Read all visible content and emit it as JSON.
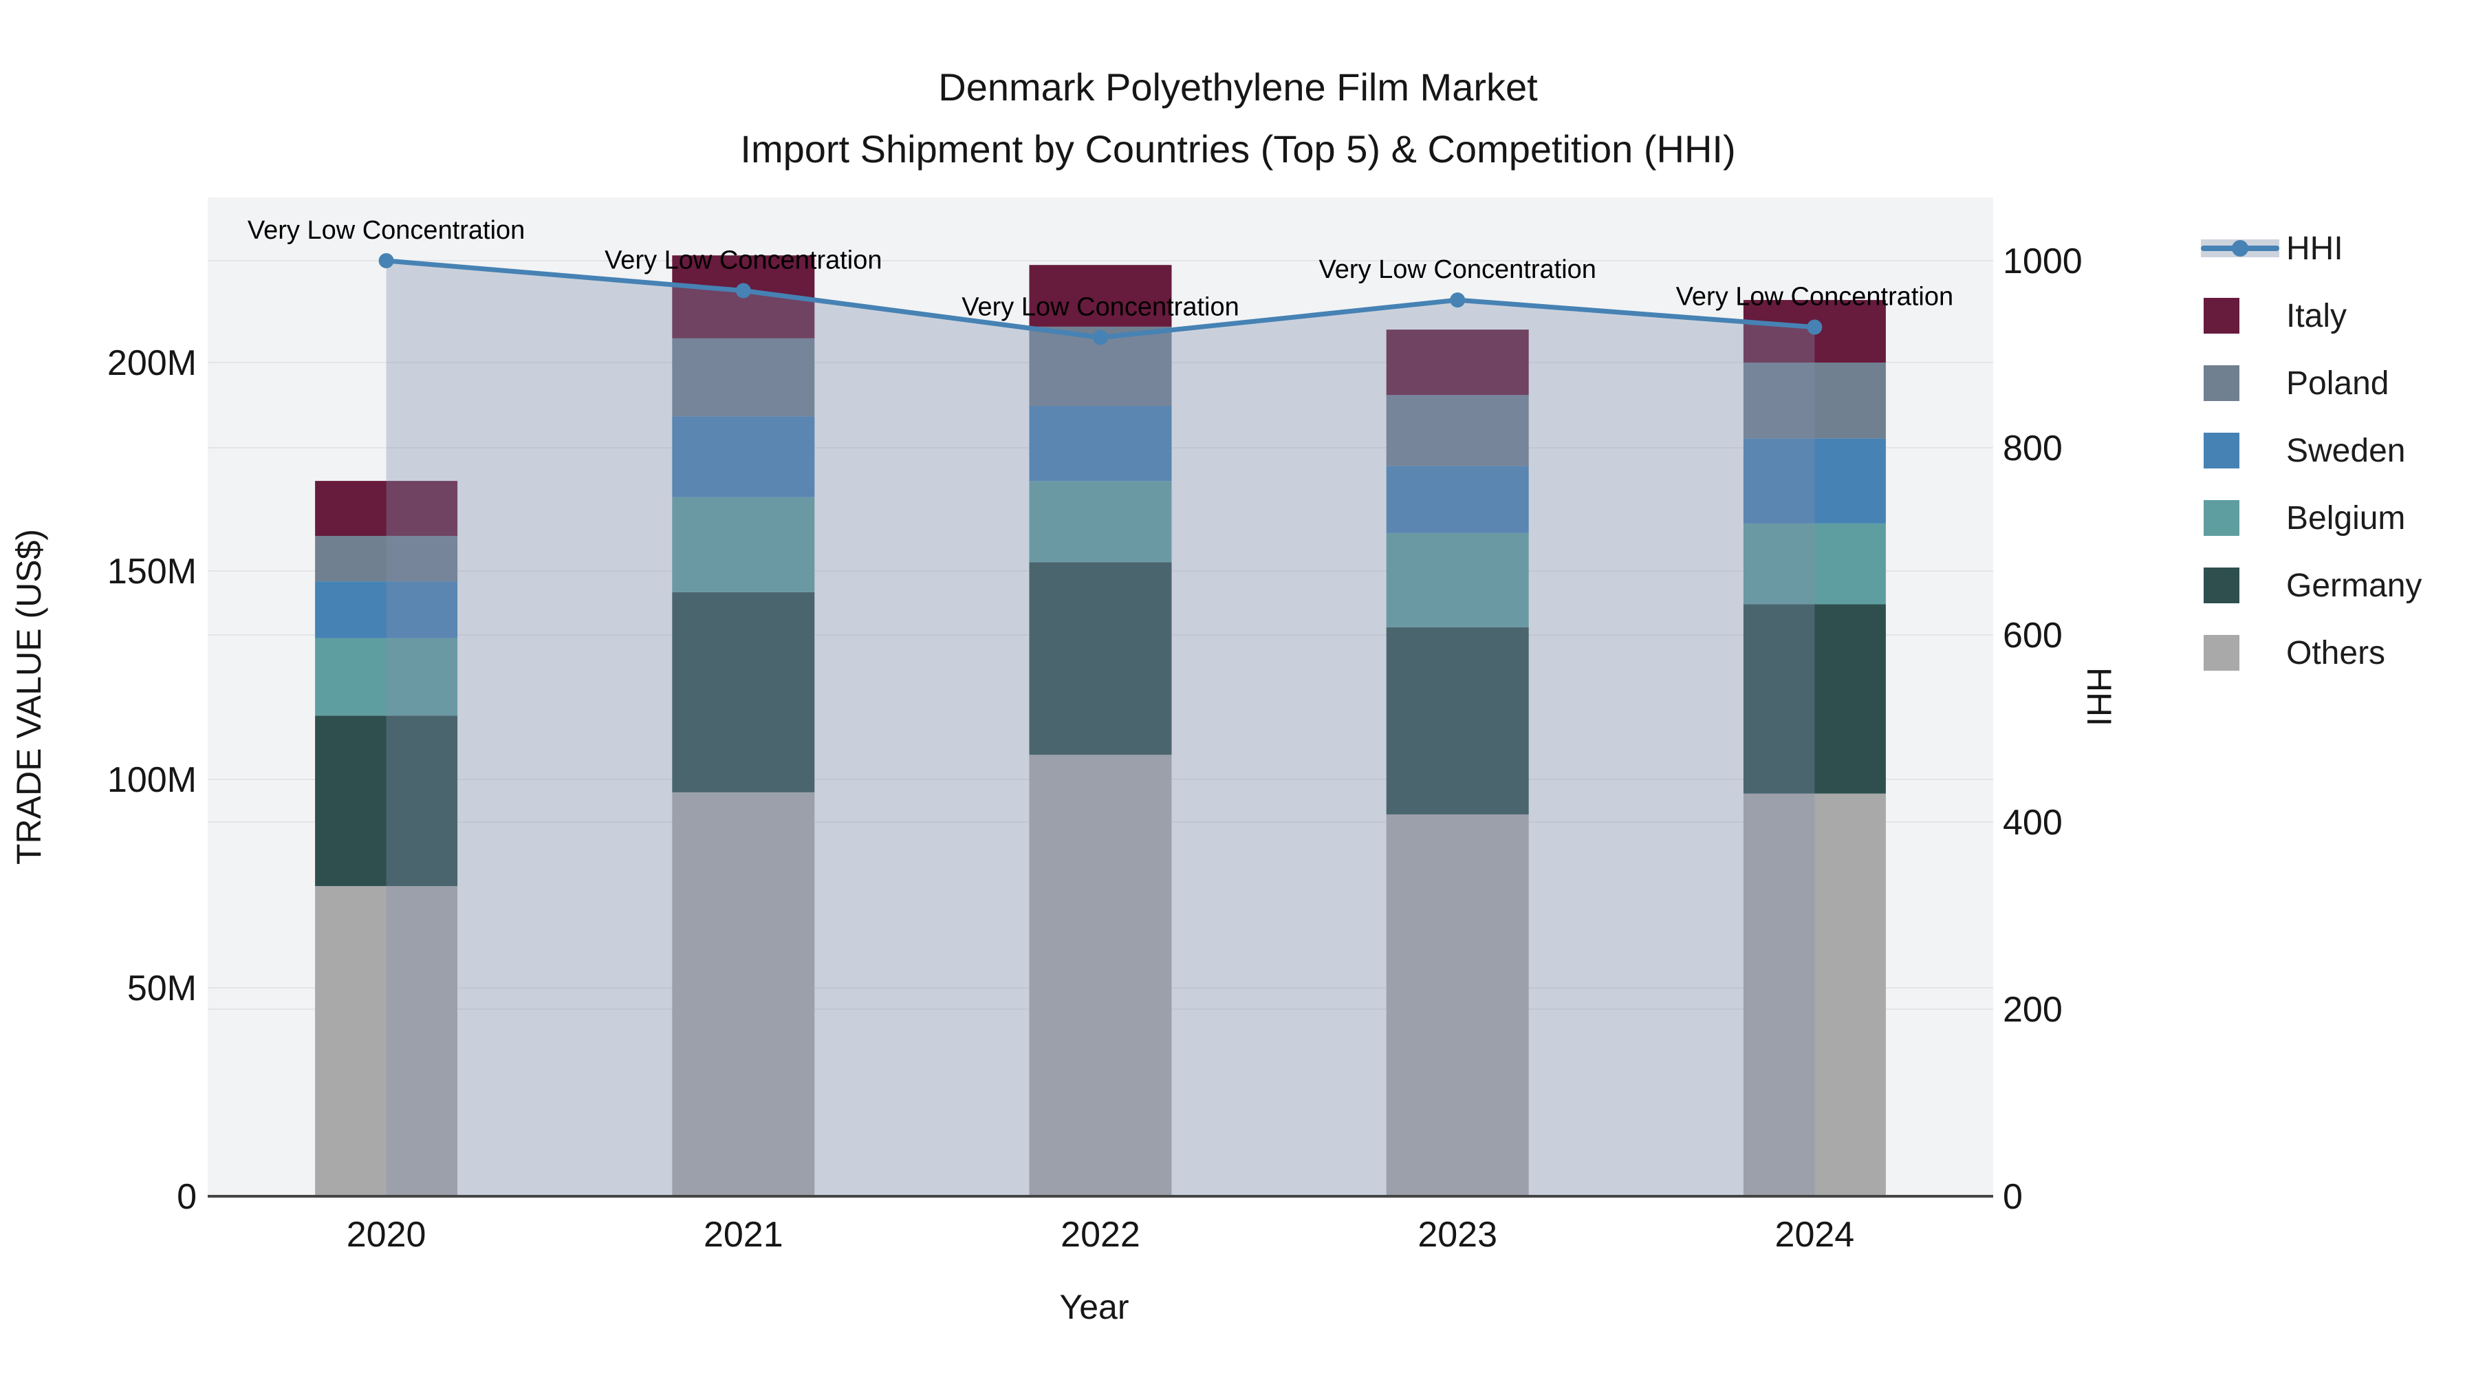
{
  "title": {
    "line1": "Denmark Polyethylene Film Market",
    "line2": "Import Shipment by Countries (Top 5) & Competition (HHI)"
  },
  "axes": {
    "x": {
      "title": "Year",
      "tick_labels": [
        "2020",
        "2021",
        "2022",
        "2023",
        "2024"
      ]
    },
    "y_left": {
      "title": "TRADE VALUE (US$)",
      "tick_labels": [
        "0",
        "50M",
        "100M",
        "150M",
        "200M"
      ],
      "tick_values_millions": [
        0,
        50,
        100,
        150,
        200
      ]
    },
    "y_right": {
      "title": "HHI",
      "tick_labels": [
        "0",
        "200",
        "400",
        "600",
        "800",
        "1000"
      ],
      "tick_values": [
        0,
        200,
        400,
        600,
        800,
        1000
      ]
    }
  },
  "legend": {
    "items": [
      {
        "label": "HHI",
        "type": "line",
        "color": "#4682B4",
        "band_color": "#CDD3DD"
      },
      {
        "label": "Italy",
        "type": "swatch",
        "color": "#671B3D"
      },
      {
        "label": "Poland",
        "type": "swatch",
        "color": "#708090"
      },
      {
        "label": "Sweden",
        "type": "swatch",
        "color": "#4682B4"
      },
      {
        "label": "Belgium",
        "type": "swatch",
        "color": "#5F9EA0"
      },
      {
        "label": "Germany",
        "type": "swatch",
        "color": "#2F4F4F"
      },
      {
        "label": "Others",
        "type": "swatch",
        "color": "#A9A9A9"
      }
    ]
  },
  "annotations": [
    "Very Low Concentration",
    "Very Low Concentration",
    "Very Low Concentration",
    "Very Low Concentration",
    "Very Low Concentration"
  ],
  "chart_data": {
    "type": "stacked-bar+line",
    "title": "Denmark Polyethylene Film Market — Import Shipment by Countries (Top 5) & Competition (HHI)",
    "categories": [
      "2020",
      "2021",
      "2022",
      "2023",
      "2024"
    ],
    "value_unit": "million US$",
    "stack_order_bottom_to_top": [
      "Others",
      "Germany",
      "Belgium",
      "Sweden",
      "Poland",
      "Italy"
    ],
    "series": [
      {
        "name": "Italy",
        "color": "#671B3D",
        "values": [
          13.2,
          19.9,
          14.8,
          15.7,
          15.0
        ]
      },
      {
        "name": "Poland",
        "color": "#708090",
        "values": [
          10.9,
          18.7,
          19.0,
          17.0,
          18.2
        ]
      },
      {
        "name": "Sweden",
        "color": "#4682B4",
        "values": [
          13.6,
          19.4,
          18.0,
          16.1,
          20.4
        ]
      },
      {
        "name": "Belgium",
        "color": "#5F9EA0",
        "values": [
          18.6,
          22.8,
          19.5,
          22.6,
          19.4
        ]
      },
      {
        "name": "Germany",
        "color": "#2F4F4F",
        "values": [
          40.9,
          48.0,
          46.2,
          44.9,
          45.4
        ]
      },
      {
        "name": "Others",
        "color": "#A9A9A9",
        "values": [
          74.4,
          96.9,
          105.9,
          91.6,
          96.6
        ]
      }
    ],
    "bar_totals_millions": [
      171.6,
      225.7,
      223.4,
      207.9,
      215.0
    ],
    "line_series": {
      "name": "HHI",
      "axis": "right",
      "color": "#4682B4",
      "area_fill": "rgba(130,143,171,0.35)",
      "values": [
        1000,
        968,
        918,
        958,
        929
      ]
    },
    "ylim_left_millions": [
      0,
      240
    ],
    "ylim_right": [
      0,
      1070
    ],
    "grid": true,
    "legend_position": "right",
    "plot_background": "#F2F3F4"
  }
}
